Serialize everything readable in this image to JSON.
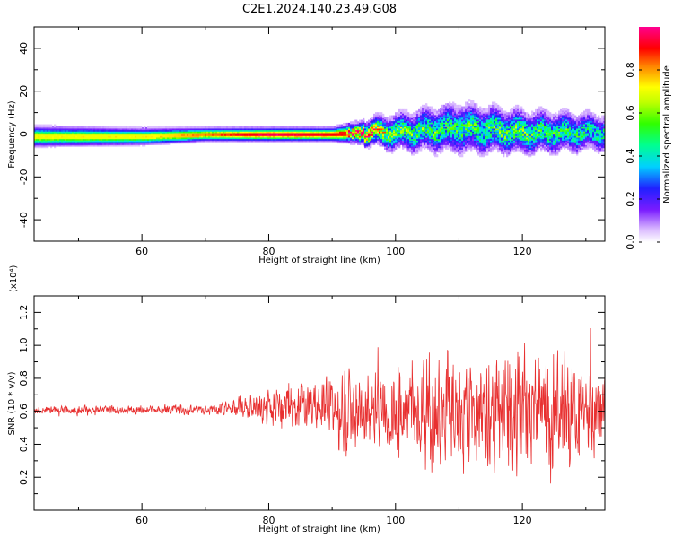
{
  "title": "C2E1.2024.140.23.49.G08",
  "chart_data": [
    {
      "type": "heatmap",
      "xlabel": "Height of straight line (km)",
      "ylabel": "Frequency (Hz)",
      "xlim": [
        43,
        133
      ],
      "ylim": [
        -50,
        50
      ],
      "xticks": [
        60,
        80,
        100,
        120
      ],
      "yticks": [
        -40,
        -20,
        0,
        20,
        40
      ],
      "colorbar": {
        "label": "Normalized spectral amplitude",
        "range": [
          0,
          1
        ],
        "ticks": [
          0.0,
          0.2,
          0.4,
          0.6,
          0.8
        ],
        "colormap": "rainbow (white-purple-blue-cyan-green-yellow-red-magenta)"
      },
      "description_points": [
        {
          "height_km": 43,
          "frequency_hz": -1,
          "spread_hz": 5,
          "amplitude": 0.7
        },
        {
          "height_km": 60,
          "frequency_hz": -1,
          "spread_hz": 4,
          "amplitude": 0.7
        },
        {
          "height_km": 70,
          "frequency_hz": 0,
          "spread_hz": 3,
          "amplitude": 0.8
        },
        {
          "height_km": 80,
          "frequency_hz": 0,
          "spread_hz": 3,
          "amplitude": 0.95
        },
        {
          "height_km": 90,
          "frequency_hz": 0,
          "spread_hz": 3,
          "amplitude": 0.9
        },
        {
          "height_km": 95,
          "frequency_hz": 1,
          "spread_hz": 6,
          "amplitude": 0.85
        },
        {
          "height_km": 100,
          "frequency_hz": 1,
          "spread_hz": 10,
          "amplitude": 0.5
        },
        {
          "height_km": 110,
          "frequency_hz": 3,
          "spread_hz": 14,
          "amplitude": 0.45
        },
        {
          "height_km": 120,
          "frequency_hz": 1,
          "spread_hz": 12,
          "amplitude": 0.5
        },
        {
          "height_km": 133,
          "frequency_hz": 1,
          "spread_hz": 10,
          "amplitude": 0.4
        }
      ]
    },
    {
      "type": "line",
      "xlabel": "Height of straight line (km)",
      "ylabel": "SNR (10 * v/v)",
      "yscale_label": "(x10⁴)",
      "xlim": [
        43,
        133
      ],
      "ylim": [
        0,
        1.3
      ],
      "xticks": [
        60,
        80,
        100,
        120
      ],
      "yticks": [
        0.2,
        0.4,
        0.6,
        0.8,
        1.0,
        1.2
      ],
      "series": [
        {
          "color": "#e83030",
          "x": [
            43,
            50,
            60,
            70,
            75,
            80,
            85,
            90,
            93,
            95,
            100,
            105,
            110,
            115,
            120,
            125,
            130,
            133
          ],
          "mean": [
            0.61,
            0.61,
            0.61,
            0.61,
            0.62,
            0.62,
            0.63,
            0.62,
            0.55,
            0.6,
            0.62,
            0.6,
            0.6,
            0.6,
            0.6,
            0.6,
            0.6,
            0.6
          ],
          "amplitude": [
            0.03,
            0.03,
            0.03,
            0.04,
            0.07,
            0.12,
            0.18,
            0.25,
            0.35,
            0.25,
            0.3,
            0.45,
            0.4,
            0.4,
            0.45,
            0.4,
            0.35,
            0.35
          ]
        }
      ]
    }
  ]
}
